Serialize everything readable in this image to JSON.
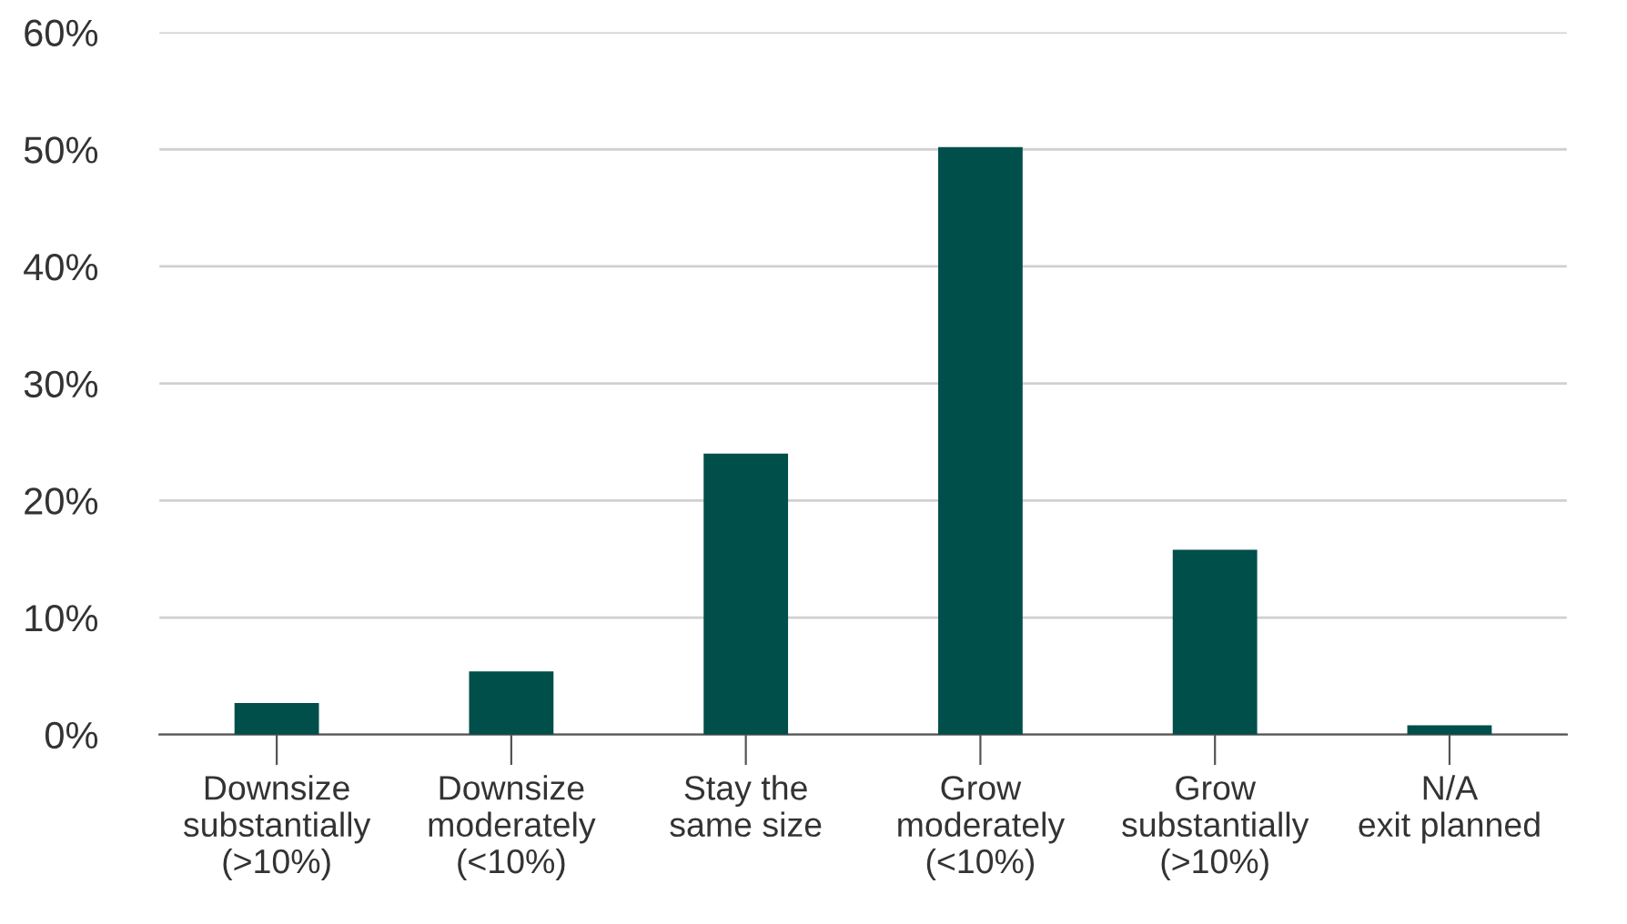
{
  "chart_data": {
    "type": "bar",
    "categories": [
      "Downsize\nsubstantially\n(>10%)",
      "Downsize\nmoderately\n(<10%)",
      "Stay the\nsame size",
      "Grow\nmoderately\n(<10%)",
      "Grow\nsubstantially\n(>10%)",
      "N/A\nexit planned"
    ],
    "values": [
      2.7,
      5.4,
      24,
      50.2,
      15.8,
      0.8
    ],
    "color": "#004f4a",
    "ylim": [
      0,
      60
    ],
    "yticks": [
      {
        "value": 0,
        "label": "0%"
      },
      {
        "value": 10,
        "label": "10%"
      },
      {
        "value": 20,
        "label": "20%"
      },
      {
        "value": 30,
        "label": "30%"
      },
      {
        "value": 40,
        "label": "40%"
      },
      {
        "value": 50,
        "label": "50%"
      },
      {
        "value": 60,
        "label": "60%"
      }
    ],
    "grid": "y"
  }
}
